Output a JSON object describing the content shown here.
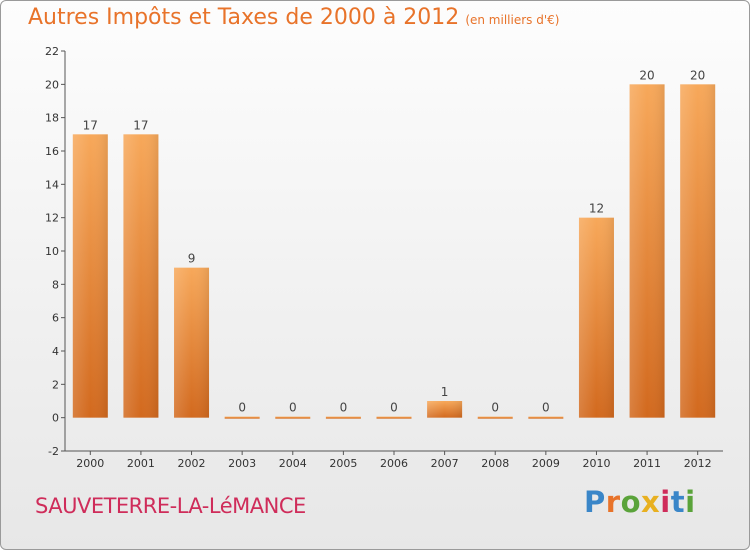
{
  "title": "Autres Impôts et Taxes de 2000 à 2012",
  "subtitle": "(en milliers d'€)",
  "commune": "SAUVETERRE-LA-LéMANCE",
  "logo": {
    "text": "Proxiti",
    "colors": [
      "#3a86c8",
      "#e8732a",
      "#5aa33a",
      "#e8b020",
      "#cf2c5a",
      "#3a86c8",
      "#5aa33a"
    ]
  },
  "chart_data": {
    "type": "bar",
    "categories": [
      "2000",
      "2001",
      "2002",
      "2003",
      "2004",
      "2005",
      "2006",
      "2007",
      "2008",
      "2009",
      "2010",
      "2011",
      "2012"
    ],
    "values": [
      17,
      17,
      9,
      0,
      0,
      0,
      0,
      1,
      0,
      0,
      12,
      20,
      20
    ],
    "data_labels": [
      "17",
      "17",
      "9",
      "0",
      "0",
      "0",
      "0",
      "1",
      "0",
      "0",
      "12",
      "20",
      "20"
    ],
    "ylim": [
      -2,
      22
    ],
    "yticks": [
      -2,
      0,
      2,
      4,
      6,
      8,
      10,
      12,
      14,
      16,
      18,
      20,
      22
    ],
    "grid": false,
    "bar_color": "#e8862f"
  }
}
